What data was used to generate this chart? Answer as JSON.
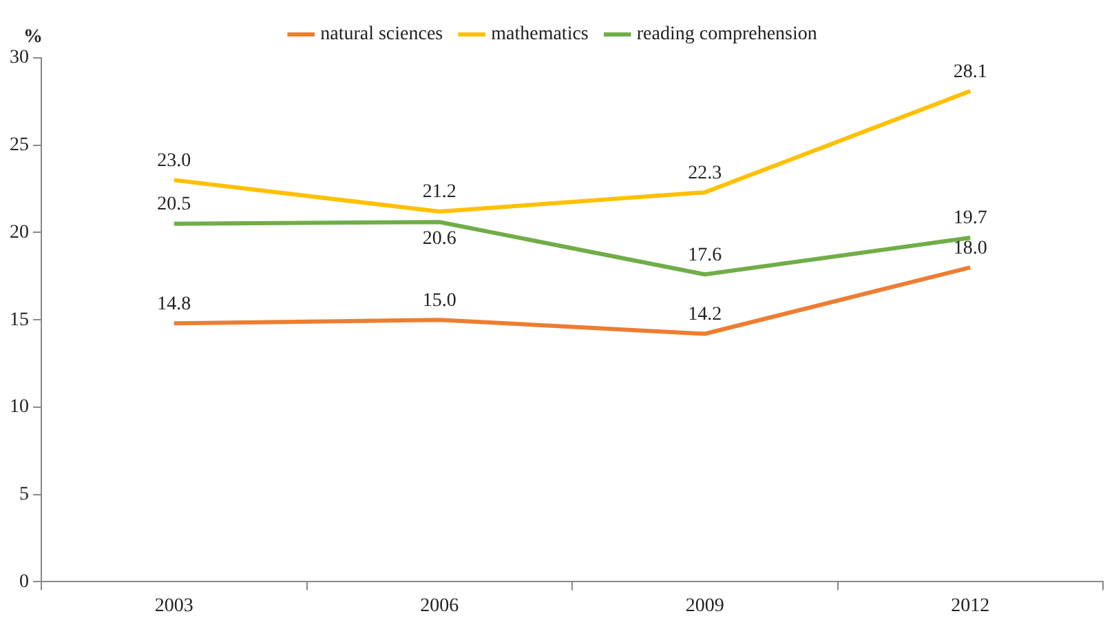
{
  "chart_data": {
    "type": "line",
    "ylabel": "%",
    "categories": [
      "2003",
      "2006",
      "2009",
      "2012"
    ],
    "series": [
      {
        "name": "natural sciences",
        "color": "#ed7d31",
        "values": [
          14.8,
          15.0,
          14.2,
          18.0
        ],
        "value_labels": [
          "14.8",
          "15.0",
          "14.2",
          "18.0"
        ]
      },
      {
        "name": "mathematics",
        "color": "#ffc000",
        "values": [
          23.0,
          21.2,
          22.3,
          28.1
        ],
        "value_labels": [
          "23.0",
          "21.2",
          "22.3",
          "28.1"
        ]
      },
      {
        "name": "reading comprehension",
        "color": "#70ad47",
        "values": [
          20.5,
          20.6,
          17.6,
          19.7
        ],
        "value_labels": [
          "20.5",
          "20.6",
          "17.6",
          "19.7"
        ]
      }
    ],
    "ylim": [
      0,
      30
    ],
    "yticks": [
      0,
      5,
      10,
      15,
      20,
      25,
      30
    ],
    "grid": false,
    "legend": "top",
    "marker": "none",
    "line_style": "solid"
  }
}
